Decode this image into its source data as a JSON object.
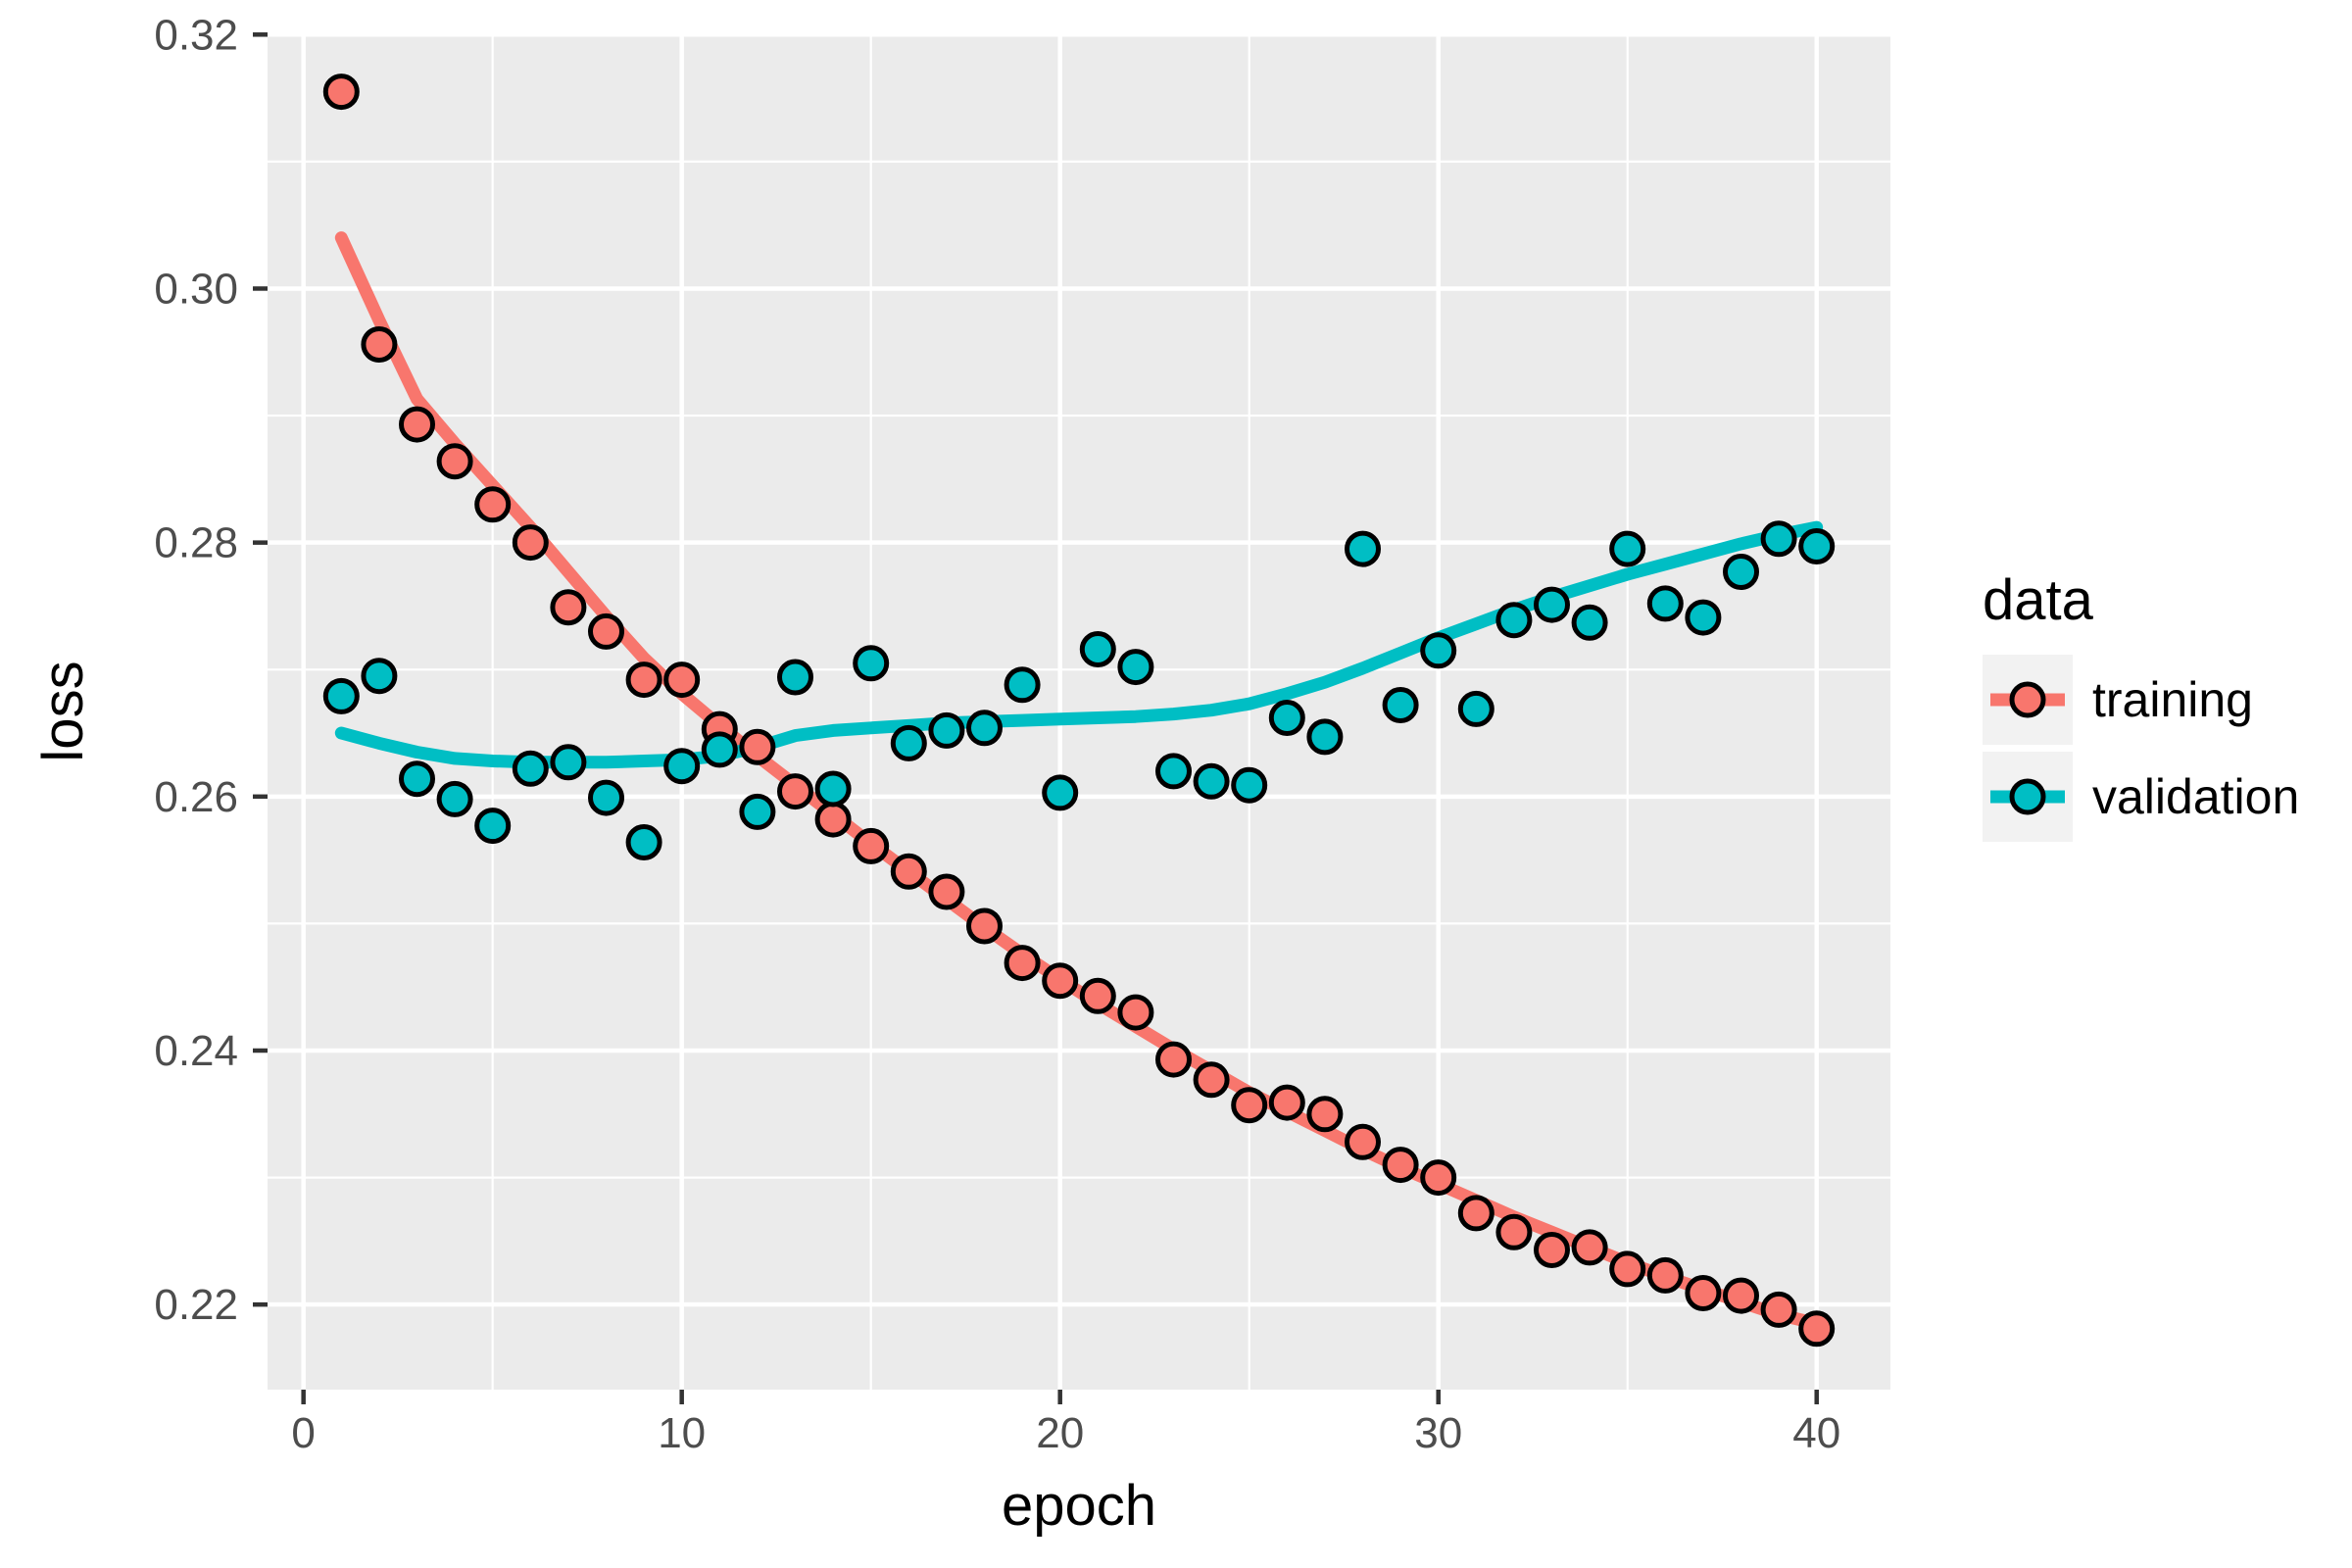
{
  "chart_data": {
    "type": "scatter",
    "title": "",
    "xlabel": "epoch",
    "ylabel": "loss",
    "legend_title": "data",
    "legend_position": "right",
    "grid": true,
    "panel_bg": "#EBEBEB",
    "grid_color": "#FFFFFF",
    "tick_color": "#333333",
    "tick_label_color": "#4D4D4D",
    "axis_title_color": "#000000",
    "xlim": [
      -0.95,
      41.95
    ],
    "ylim": [
      0.2133,
      0.3201
    ],
    "x_ticks": [
      0,
      10,
      20,
      30,
      40
    ],
    "x_tick_labels": [
      "0",
      "10",
      "20",
      "30",
      "40"
    ],
    "x_minor_ticks": [
      5,
      15,
      25,
      35
    ],
    "y_ticks": [
      0.22,
      0.24,
      0.26,
      0.28,
      0.3,
      0.32
    ],
    "y_tick_labels": [
      "0.22",
      "0.24",
      "0.26",
      "0.28",
      "0.30",
      "0.32"
    ],
    "y_minor_ticks": [
      0.23,
      0.25,
      0.27,
      0.29,
      0.31
    ],
    "point_style": {
      "shape": "circle-filled",
      "outline": "#000000",
      "radius": 16,
      "outline_width": 5
    },
    "smooth_line_width": 13,
    "series": [
      {
        "name": "training",
        "color": "#F8766D",
        "x": [
          1,
          2,
          3,
          4,
          5,
          6,
          7,
          8,
          9,
          10,
          11,
          12,
          13,
          14,
          15,
          16,
          17,
          18,
          19,
          20,
          21,
          22,
          23,
          24,
          25,
          26,
          27,
          28,
          29,
          30,
          31,
          32,
          33,
          34,
          35,
          36,
          37,
          38,
          39,
          40
        ],
        "y": [
          0.3155,
          0.2956,
          0.2893,
          0.2864,
          0.283,
          0.28,
          0.2749,
          0.273,
          0.2692,
          0.2692,
          0.2653,
          0.2639,
          0.2604,
          0.2582,
          0.2561,
          0.2541,
          0.2525,
          0.2498,
          0.2469,
          0.2455,
          0.2443,
          0.243,
          0.2393,
          0.2377,
          0.2357,
          0.2359,
          0.235,
          0.2328,
          0.231,
          0.23,
          0.2272,
          0.2257,
          0.2243,
          0.2245,
          0.2228,
          0.2223,
          0.2209,
          0.2207,
          0.2196,
          0.2181
        ],
        "smooth": [
          0.304,
          0.2975,
          0.2913,
          0.2878,
          0.2845,
          0.2812,
          0.2777,
          0.2742,
          0.2709,
          0.2681,
          0.2656,
          0.2632,
          0.2609,
          0.2586,
          0.2563,
          0.2541,
          0.2519,
          0.2497,
          0.2476,
          0.2456,
          0.2437,
          0.2419,
          0.2401,
          0.2384,
          0.2367,
          0.2352,
          0.2337,
          0.2322,
          0.2308,
          0.2295,
          0.2282,
          0.2269,
          0.2257,
          0.2245,
          0.2233,
          0.2222,
          0.2212,
          0.2202,
          0.2192,
          0.2185
        ]
      },
      {
        "name": "validation",
        "color": "#00BEC4",
        "x": [
          1,
          2,
          3,
          4,
          5,
          6,
          7,
          8,
          9,
          10,
          11,
          12,
          13,
          14,
          15,
          16,
          17,
          18,
          19,
          20,
          21,
          22,
          23,
          24,
          25,
          26,
          27,
          28,
          29,
          30,
          31,
          32,
          33,
          34,
          35,
          36,
          37,
          38,
          39,
          40
        ],
        "y": [
          0.2679,
          0.2695,
          0.2614,
          0.2598,
          0.2577,
          0.2622,
          0.2627,
          0.2599,
          0.2564,
          0.2624,
          0.2637,
          0.2588,
          0.2694,
          0.2606,
          0.2705,
          0.2642,
          0.2652,
          0.2654,
          0.2688,
          0.2603,
          0.2716,
          0.2702,
          0.262,
          0.2612,
          0.2609,
          0.2662,
          0.2647,
          0.2795,
          0.2672,
          0.2715,
          0.2669,
          0.2739,
          0.2751,
          0.2737,
          0.2795,
          0.2752,
          0.2741,
          0.2777,
          0.2803,
          0.2797
        ],
        "smooth": [
          0.265,
          0.2642,
          0.2635,
          0.263,
          0.2628,
          0.2627,
          0.2627,
          0.2627,
          0.2628,
          0.2629,
          0.2632,
          0.2639,
          0.2648,
          0.2652,
          0.2654,
          0.2656,
          0.2658,
          0.2659,
          0.266,
          0.2661,
          0.2662,
          0.2663,
          0.2665,
          0.2668,
          0.2673,
          0.2681,
          0.269,
          0.2701,
          0.2713,
          0.2725,
          0.2736,
          0.2747,
          0.2757,
          0.2766,
          0.2775,
          0.2783,
          0.2791,
          0.2799,
          0.2806,
          0.2812
        ]
      }
    ]
  },
  "legend": {
    "title": "data",
    "items": [
      {
        "label": "training",
        "color": "#F8766D"
      },
      {
        "label": "validation",
        "color": "#00BEC4"
      }
    ]
  }
}
